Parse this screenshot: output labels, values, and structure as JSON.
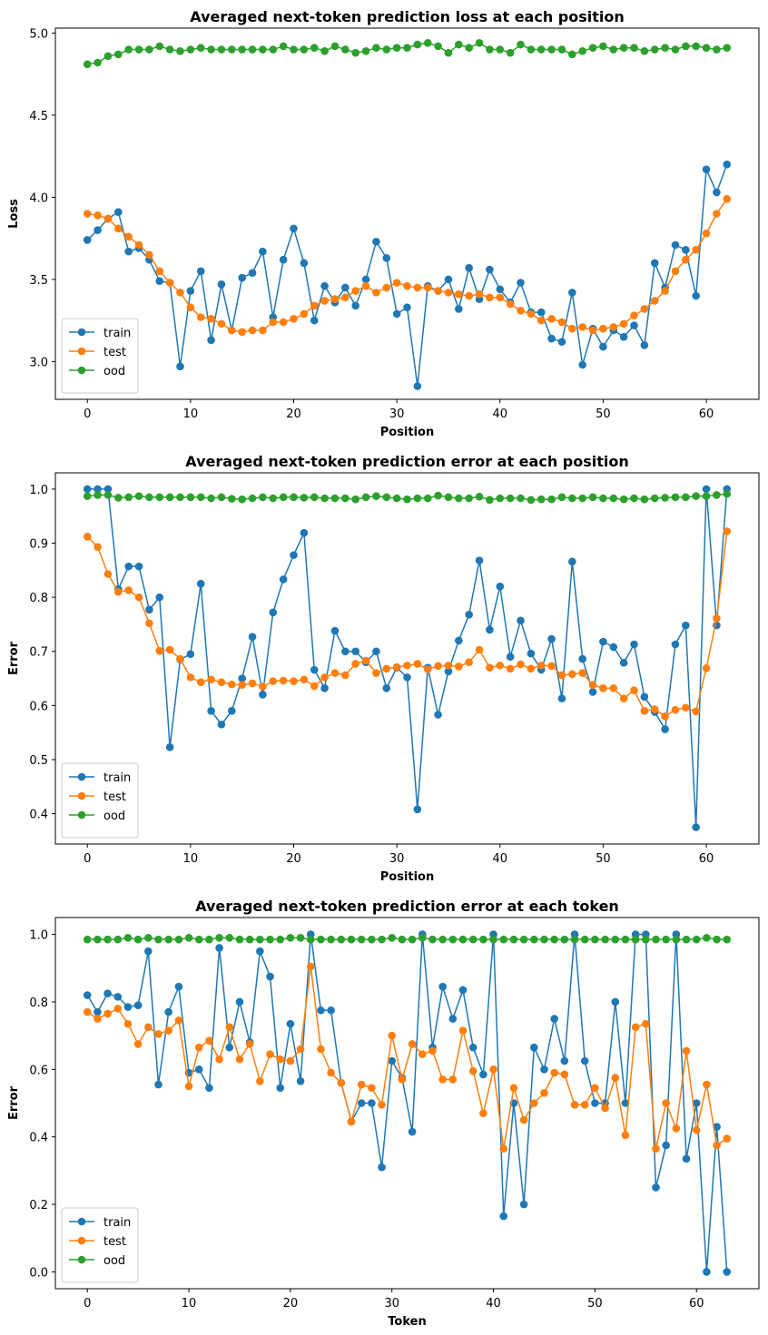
{
  "chart_data": [
    {
      "type": "line",
      "title": "Averaged next-token prediction loss at each position",
      "xlabel": "Position",
      "ylabel": "Loss",
      "xlim": [
        -3.1,
        65.1
      ],
      "ylim": [
        2.77,
        5.03
      ],
      "xticks": [
        0,
        10,
        20,
        30,
        40,
        50,
        60
      ],
      "yticks": [
        3.0,
        3.5,
        4.0,
        4.5,
        5.0
      ],
      "ytick_labels": [
        "3.0",
        "3.5",
        "4.0",
        "4.5",
        "5.0"
      ],
      "legend_position": "lower left",
      "x": [
        0,
        1,
        2,
        3,
        4,
        5,
        6,
        7,
        8,
        9,
        10,
        11,
        12,
        13,
        14,
        15,
        16,
        17,
        18,
        19,
        20,
        21,
        22,
        23,
        24,
        25,
        26,
        27,
        28,
        29,
        30,
        31,
        32,
        33,
        34,
        35,
        36,
        37,
        38,
        39,
        40,
        41,
        42,
        43,
        44,
        45,
        46,
        47,
        48,
        49,
        50,
        51,
        52,
        53,
        54,
        55,
        56,
        57,
        58,
        59,
        60,
        61,
        62
      ],
      "series": [
        {
          "name": "train",
          "color": "#1f77b4",
          "values": [
            3.74,
            3.8,
            3.87,
            3.91,
            3.67,
            3.69,
            3.62,
            3.49,
            3.48,
            2.97,
            3.43,
            3.55,
            3.13,
            3.47,
            3.19,
            3.51,
            3.54,
            3.67,
            3.27,
            3.62,
            3.81,
            3.6,
            3.25,
            3.46,
            3.36,
            3.45,
            3.34,
            3.5,
            3.73,
            3.63,
            3.29,
            3.33,
            2.85,
            3.46,
            3.43,
            3.5,
            3.32,
            3.57,
            3.38,
            3.56,
            3.44,
            3.36,
            3.48,
            3.3,
            3.3,
            3.14,
            3.12,
            3.42,
            2.98,
            3.2,
            3.09,
            3.19,
            3.15,
            3.22,
            3.1,
            3.6,
            3.45,
            3.71,
            3.68,
            3.4,
            4.17,
            4.03,
            4.2
          ]
        },
        {
          "name": "test",
          "color": "#ff7f0e",
          "values": [
            3.9,
            3.89,
            3.87,
            3.81,
            3.76,
            3.71,
            3.65,
            3.55,
            3.48,
            3.42,
            3.33,
            3.27,
            3.26,
            3.23,
            3.19,
            3.18,
            3.19,
            3.19,
            3.24,
            3.24,
            3.26,
            3.29,
            3.34,
            3.37,
            3.38,
            3.39,
            3.43,
            3.46,
            3.42,
            3.45,
            3.48,
            3.46,
            3.45,
            3.45,
            3.43,
            3.42,
            3.41,
            3.4,
            3.41,
            3.39,
            3.39,
            3.35,
            3.31,
            3.29,
            3.25,
            3.26,
            3.24,
            3.2,
            3.21,
            3.19,
            3.2,
            3.21,
            3.23,
            3.28,
            3.32,
            3.37,
            3.43,
            3.55,
            3.62,
            3.68,
            3.78,
            3.9,
            3.99
          ]
        },
        {
          "name": "ood",
          "color": "#2ca02c",
          "values": [
            4.81,
            4.82,
            4.86,
            4.87,
            4.9,
            4.9,
            4.9,
            4.92,
            4.9,
            4.89,
            4.9,
            4.91,
            4.9,
            4.9,
            4.9,
            4.9,
            4.9,
            4.9,
            4.9,
            4.92,
            4.9,
            4.9,
            4.91,
            4.89,
            4.92,
            4.9,
            4.88,
            4.89,
            4.91,
            4.9,
            4.91,
            4.91,
            4.93,
            4.94,
            4.92,
            4.88,
            4.93,
            4.91,
            4.94,
            4.9,
            4.9,
            4.88,
            4.93,
            4.9,
            4.9,
            4.9,
            4.9,
            4.87,
            4.89,
            4.91,
            4.92,
            4.9,
            4.91,
            4.91,
            4.89,
            4.9,
            4.91,
            4.9,
            4.92,
            4.92,
            4.91,
            4.9,
            4.91
          ]
        }
      ]
    },
    {
      "type": "line",
      "title": "Averaged next-token prediction error at each position",
      "xlabel": "Position",
      "ylabel": "Error",
      "xlim": [
        -3.1,
        65.1
      ],
      "ylim": [
        0.344,
        1.03
      ],
      "xticks": [
        0,
        10,
        20,
        30,
        40,
        50,
        60
      ],
      "yticks": [
        0.4,
        0.5,
        0.6,
        0.7,
        0.8,
        0.9,
        1.0
      ],
      "ytick_labels": [
        "0.4",
        "0.5",
        "0.6",
        "0.7",
        "0.8",
        "0.9",
        "1.0"
      ],
      "legend_position": "lower left",
      "x": [
        0,
        1,
        2,
        3,
        4,
        5,
        6,
        7,
        8,
        9,
        10,
        11,
        12,
        13,
        14,
        15,
        16,
        17,
        18,
        19,
        20,
        21,
        22,
        23,
        24,
        25,
        26,
        27,
        28,
        29,
        30,
        31,
        32,
        33,
        34,
        35,
        36,
        37,
        38,
        39,
        40,
        41,
        42,
        43,
        44,
        45,
        46,
        47,
        48,
        49,
        50,
        51,
        52,
        53,
        54,
        55,
        56,
        57,
        58,
        59,
        60,
        61,
        62
      ],
      "series": [
        {
          "name": "train",
          "color": "#1f77b4",
          "values": [
            1.0,
            1.0,
            1.0,
            0.815,
            0.857,
            0.857,
            0.777,
            0.8,
            0.523,
            0.685,
            0.695,
            0.825,
            0.59,
            0.565,
            0.59,
            0.65,
            0.727,
            0.62,
            0.772,
            0.833,
            0.878,
            0.919,
            0.666,
            0.632,
            0.738,
            0.7,
            0.7,
            0.68,
            0.7,
            0.632,
            0.67,
            0.652,
            0.408,
            0.67,
            0.583,
            0.663,
            0.72,
            0.768,
            0.868,
            0.74,
            0.82,
            0.69,
            0.757,
            0.696,
            0.666,
            0.723,
            0.613,
            0.866,
            0.686,
            0.625,
            0.718,
            0.708,
            0.679,
            0.713,
            0.616,
            0.588,
            0.556,
            0.713,
            0.748,
            0.375,
            1.0,
            0.748,
            1.0
          ]
        },
        {
          "name": "test",
          "color": "#ff7f0e",
          "values": [
            0.912,
            0.893,
            0.843,
            0.81,
            0.813,
            0.8,
            0.752,
            0.701,
            0.703,
            0.686,
            0.652,
            0.643,
            0.648,
            0.643,
            0.639,
            0.638,
            0.641,
            0.635,
            0.645,
            0.646,
            0.645,
            0.648,
            0.636,
            0.652,
            0.66,
            0.656,
            0.677,
            0.683,
            0.66,
            0.668,
            0.671,
            0.674,
            0.677,
            0.667,
            0.673,
            0.674,
            0.672,
            0.68,
            0.703,
            0.67,
            0.674,
            0.668,
            0.676,
            0.668,
            0.674,
            0.673,
            0.656,
            0.658,
            0.66,
            0.638,
            0.632,
            0.632,
            0.613,
            0.628,
            0.59,
            0.593,
            0.58,
            0.592,
            0.596,
            0.589,
            0.669,
            0.761,
            0.922
          ]
        },
        {
          "name": "ood",
          "color": "#2ca02c",
          "values": [
            0.987,
            0.989,
            0.989,
            0.984,
            0.985,
            0.987,
            0.985,
            0.985,
            0.985,
            0.985,
            0.985,
            0.985,
            0.983,
            0.985,
            0.982,
            0.981,
            0.983,
            0.985,
            0.983,
            0.985,
            0.985,
            0.984,
            0.985,
            0.983,
            0.983,
            0.983,
            0.981,
            0.985,
            0.987,
            0.985,
            0.983,
            0.981,
            0.983,
            0.983,
            0.988,
            0.985,
            0.983,
            0.983,
            0.986,
            0.98,
            0.983,
            0.983,
            0.983,
            0.98,
            0.981,
            0.981,
            0.985,
            0.983,
            0.983,
            0.985,
            0.983,
            0.983,
            0.981,
            0.983,
            0.981,
            0.983,
            0.984,
            0.985,
            0.985,
            0.987,
            0.987,
            0.989,
            0.991
          ]
        }
      ]
    },
    {
      "type": "line",
      "title": "Averaged next-token prediction error at each token",
      "xlabel": "Token",
      "ylabel": "Error",
      "xlim": [
        -3.15,
        66.15
      ],
      "ylim": [
        -0.05,
        1.05
      ],
      "xticks": [
        0,
        10,
        20,
        30,
        40,
        50,
        60
      ],
      "yticks": [
        0.0,
        0.2,
        0.4,
        0.6,
        0.8,
        1.0
      ],
      "ytick_labels": [
        "0.0",
        "0.2",
        "0.4",
        "0.6",
        "0.8",
        "1.0"
      ],
      "legend_position": "lower left",
      "x": [
        0,
        1,
        2,
        3,
        4,
        5,
        6,
        7,
        8,
        9,
        10,
        11,
        12,
        13,
        14,
        15,
        16,
        17,
        18,
        19,
        20,
        21,
        22,
        23,
        24,
        25,
        26,
        27,
        28,
        29,
        30,
        31,
        32,
        33,
        34,
        35,
        36,
        37,
        38,
        39,
        40,
        41,
        42,
        43,
        44,
        45,
        46,
        47,
        48,
        49,
        50,
        51,
        52,
        53,
        54,
        55,
        56,
        57,
        58,
        59,
        60,
        61,
        62,
        63
      ],
      "series": [
        {
          "name": "train",
          "color": "#1f77b4",
          "values": [
            0.82,
            0.77,
            0.825,
            0.815,
            0.785,
            0.79,
            0.95,
            0.555,
            0.77,
            0.845,
            0.59,
            0.6,
            0.545,
            0.96,
            0.665,
            0.8,
            0.68,
            0.95,
            0.875,
            0.545,
            0.735,
            0.565,
            1.0,
            0.775,
            0.775,
            0.56,
            0.445,
            0.5,
            0.5,
            0.31,
            0.625,
            0.575,
            0.415,
            1.0,
            0.665,
            0.845,
            0.75,
            0.835,
            0.665,
            0.585,
            1.0,
            0.165,
            0.5,
            0.2,
            0.665,
            0.6,
            0.75,
            0.625,
            1.0,
            0.625,
            0.5,
            0.5,
            0.8,
            0.5,
            1.0,
            1.0,
            0.25,
            0.375,
            1.0,
            0.335,
            0.5,
            0.0,
            0.43,
            0.0
          ]
        },
        {
          "name": "test",
          "color": "#ff7f0e",
          "values": [
            0.77,
            0.75,
            0.765,
            0.78,
            0.735,
            0.675,
            0.725,
            0.705,
            0.715,
            0.745,
            0.55,
            0.665,
            0.685,
            0.63,
            0.725,
            0.63,
            0.675,
            0.565,
            0.645,
            0.63,
            0.625,
            0.66,
            0.905,
            0.66,
            0.59,
            0.56,
            0.445,
            0.555,
            0.545,
            0.495,
            0.7,
            0.57,
            0.675,
            0.645,
            0.655,
            0.57,
            0.57,
            0.715,
            0.595,
            0.47,
            0.6,
            0.365,
            0.545,
            0.45,
            0.5,
            0.53,
            0.59,
            0.585,
            0.495,
            0.495,
            0.545,
            0.485,
            0.575,
            0.405,
            0.725,
            0.735,
            0.365,
            0.5,
            0.425,
            0.655,
            0.42,
            0.555,
            0.375,
            0.395
          ]
        },
        {
          "name": "ood",
          "color": "#2ca02c",
          "values": [
            0.985,
            0.985,
            0.985,
            0.985,
            0.99,
            0.985,
            0.99,
            0.985,
            0.985,
            0.985,
            0.99,
            0.985,
            0.985,
            0.99,
            0.99,
            0.985,
            0.985,
            0.985,
            0.985,
            0.985,
            0.99,
            0.99,
            0.985,
            0.985,
            0.985,
            0.985,
            0.985,
            0.985,
            0.985,
            0.985,
            0.99,
            0.985,
            0.985,
            0.99,
            0.985,
            0.985,
            0.985,
            0.985,
            0.985,
            0.985,
            0.985,
            0.985,
            0.985,
            0.985,
            0.985,
            0.985,
            0.985,
            0.985,
            0.985,
            0.985,
            0.985,
            0.985,
            0.985,
            0.985,
            0.985,
            0.985,
            0.985,
            0.985,
            0.985,
            0.985,
            0.985,
            0.99,
            0.985,
            0.985
          ]
        }
      ]
    }
  ]
}
